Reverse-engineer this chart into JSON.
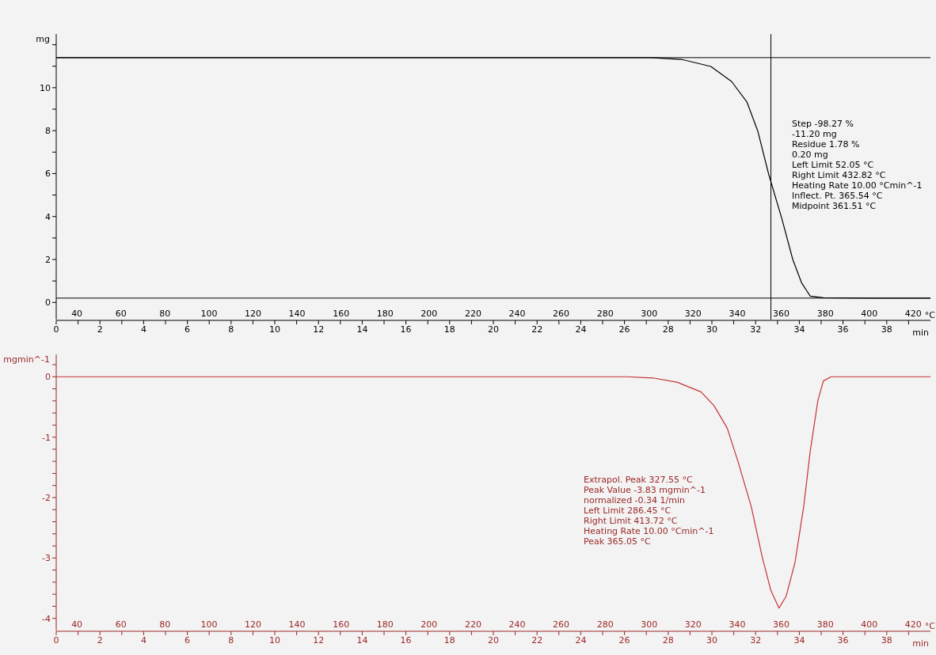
{
  "chart_data": [
    {
      "type": "line",
      "ylabel": "mg",
      "xlabel": "min",
      "x2label": "°C",
      "xlim": [
        0,
        40
      ],
      "xticks": [
        0,
        {
          "value": 1,
          "label": null
        },
        2,
        {
          "value": 3,
          "label": null
        },
        4,
        {
          "value": 5,
          "label": null
        },
        6,
        {
          "value": 7,
          "label": null
        },
        8,
        {
          "value": 9,
          "label": null
        },
        10,
        {
          "value": 11,
          "label": null
        },
        12,
        {
          "value": 13,
          "label": null
        },
        14,
        {
          "value": 15,
          "label": null
        },
        16,
        {
          "value": 17,
          "label": null
        },
        18,
        {
          "value": 19,
          "label": null
        },
        20,
        {
          "value": 21,
          "label": null
        },
        22,
        {
          "value": 23,
          "label": null
        },
        24,
        {
          "value": 25,
          "label": null
        },
        26,
        {
          "value": 27,
          "label": null
        },
        28,
        {
          "value": 29,
          "label": null
        },
        30,
        {
          "value": 31,
          "label": null
        },
        32,
        {
          "value": 33,
          "label": null
        },
        34,
        {
          "value": 35,
          "label": null
        },
        36,
        {
          "value": 37,
          "label": null
        },
        38,
        {
          "value": 39,
          "label": null
        }
      ],
      "x2lim": [
        30.6,
        427.8
      ],
      "x2ticks": [
        40,
        60,
        80,
        100,
        120,
        140,
        160,
        180,
        200,
        220,
        240,
        260,
        280,
        300,
        320,
        340,
        360,
        380,
        400,
        420
      ],
      "ylim": [
        -0.8,
        12.5
      ],
      "yticks": [
        0,
        {
          "value": 1,
          "label": null
        },
        2,
        {
          "value": 3,
          "label": null
        },
        4,
        {
          "value": 5,
          "label": null
        },
        6,
        {
          "value": 7,
          "label": null
        },
        8,
        {
          "value": 9,
          "label": null
        },
        10,
        {
          "value": 11,
          "label": null
        },
        {
          "value": 12,
          "label": null
        }
      ],
      "series": [
        {
          "color": "#000000",
          "x": [
            0,
            10,
            20,
            27.2,
            28.6,
            29.95,
            30.9,
            31.6,
            32.1,
            32.6,
            33.2,
            33.7,
            34.1,
            34.5,
            35.1,
            37,
            40
          ],
          "values": [
            11.4,
            11.4,
            11.4,
            11.4,
            11.32,
            10.99,
            10.29,
            9.34,
            7.98,
            5.96,
            3.9,
            2.0,
            0.92,
            0.29,
            0.22,
            0.2,
            0.2
          ]
        }
      ],
      "ref_lines": [
        {
          "axis": "y",
          "value": 11.4,
          "color": "#000000"
        },
        {
          "axis": "y",
          "value": 0.2,
          "color": "#000000"
        },
        {
          "axis": "x",
          "value": 32.7,
          "color": "#000000"
        }
      ],
      "annotations": [
        "Step -98.27 %",
        "-11.20 mg",
        "Residue 1.78 %",
        "0.20 mg",
        "Left Limit 52.05 °C",
        "Right Limit 432.82 °C",
        "Heating Rate 10.00 °Cmin^-1",
        "Inflect. Pt. 365.54 °C",
        "Midpoint 361.51 °C"
      ]
    },
    {
      "type": "line",
      "ylabel": "mgmin^-1",
      "xlabel": "min",
      "x2label": "°C",
      "xlim": [
        0,
        40
      ],
      "xticks": [
        0,
        {
          "value": 1,
          "label": null
        },
        2,
        {
          "value": 3,
          "label": null
        },
        4,
        {
          "value": 5,
          "label": null
        },
        6,
        {
          "value": 7,
          "label": null
        },
        8,
        {
          "value": 9,
          "label": null
        },
        10,
        {
          "value": 11,
          "label": null
        },
        12,
        {
          "value": 13,
          "label": null
        },
        14,
        {
          "value": 15,
          "label": null
        },
        16,
        {
          "value": 17,
          "label": null
        },
        18,
        {
          "value": 19,
          "label": null
        },
        20,
        {
          "value": 21,
          "label": null
        },
        22,
        {
          "value": 23,
          "label": null
        },
        24,
        {
          "value": 25,
          "label": null
        },
        26,
        {
          "value": 27,
          "label": null
        },
        28,
        {
          "value": 29,
          "label": null
        },
        30,
        {
          "value": 31,
          "label": null
        },
        32,
        {
          "value": 33,
          "label": null
        },
        34,
        {
          "value": 35,
          "label": null
        },
        36,
        {
          "value": 37,
          "label": null
        },
        38,
        {
          "value": 39,
          "label": null
        }
      ],
      "x2lim": [
        30.6,
        427.8
      ],
      "x2ticks": [
        40,
        60,
        80,
        100,
        120,
        140,
        160,
        180,
        200,
        220,
        240,
        260,
        280,
        300,
        320,
        340,
        360,
        380,
        400,
        420
      ],
      "ylim": [
        -4.2,
        0.37
      ],
      "yticks": [
        -4,
        {
          "value": -3.8,
          "label": null
        },
        {
          "value": -3.6,
          "label": null
        },
        {
          "value": -3.4,
          "label": null
        },
        {
          "value": -3.2,
          "label": null
        },
        -3,
        {
          "value": -2.8,
          "label": null
        },
        {
          "value": -2.6,
          "label": null
        },
        {
          "value": -2.4,
          "label": null
        },
        {
          "value": -2.2,
          "label": null
        },
        -2,
        {
          "value": -1.8,
          "label": null
        },
        {
          "value": -1.6,
          "label": null
        },
        {
          "value": -1.4,
          "label": null
        },
        {
          "value": -1.2,
          "label": null
        },
        -1,
        {
          "value": -0.8,
          "label": null
        },
        {
          "value": -0.6,
          "label": null
        },
        {
          "value": -0.4,
          "label": null
        },
        {
          "value": -0.2,
          "label": null
        },
        0,
        {
          "value": 0.2,
          "label": null
        }
      ],
      "series": [
        {
          "color": "#c83232",
          "x": [
            0,
            10,
            20,
            26.1,
            27.3,
            28.4,
            29.5,
            30.1,
            30.7,
            31.2,
            31.8,
            32.3,
            32.7,
            33.07,
            33.4,
            33.8,
            34.2,
            34.5,
            34.85,
            35.1,
            35.45,
            40
          ],
          "values": [
            0,
            0,
            0,
            0,
            -0.02,
            -0.09,
            -0.25,
            -0.48,
            -0.85,
            -1.41,
            -2.15,
            -2.98,
            -3.54,
            -3.83,
            -3.63,
            -3.08,
            -2.15,
            -1.23,
            -0.39,
            -0.07,
            0,
            0
          ]
        }
      ],
      "annotations": [
        "Extrapol. Peak 327.55 °C",
        "Peak Value -3.83 mgmin^-1",
        "normalized -0.34 1/min",
        "Left Limit 286.45 °C",
        "Right Limit 413.72 °C",
        "Heating Rate 10.00 °Cmin^-1",
        "Peak 365.05 °C"
      ]
    }
  ]
}
